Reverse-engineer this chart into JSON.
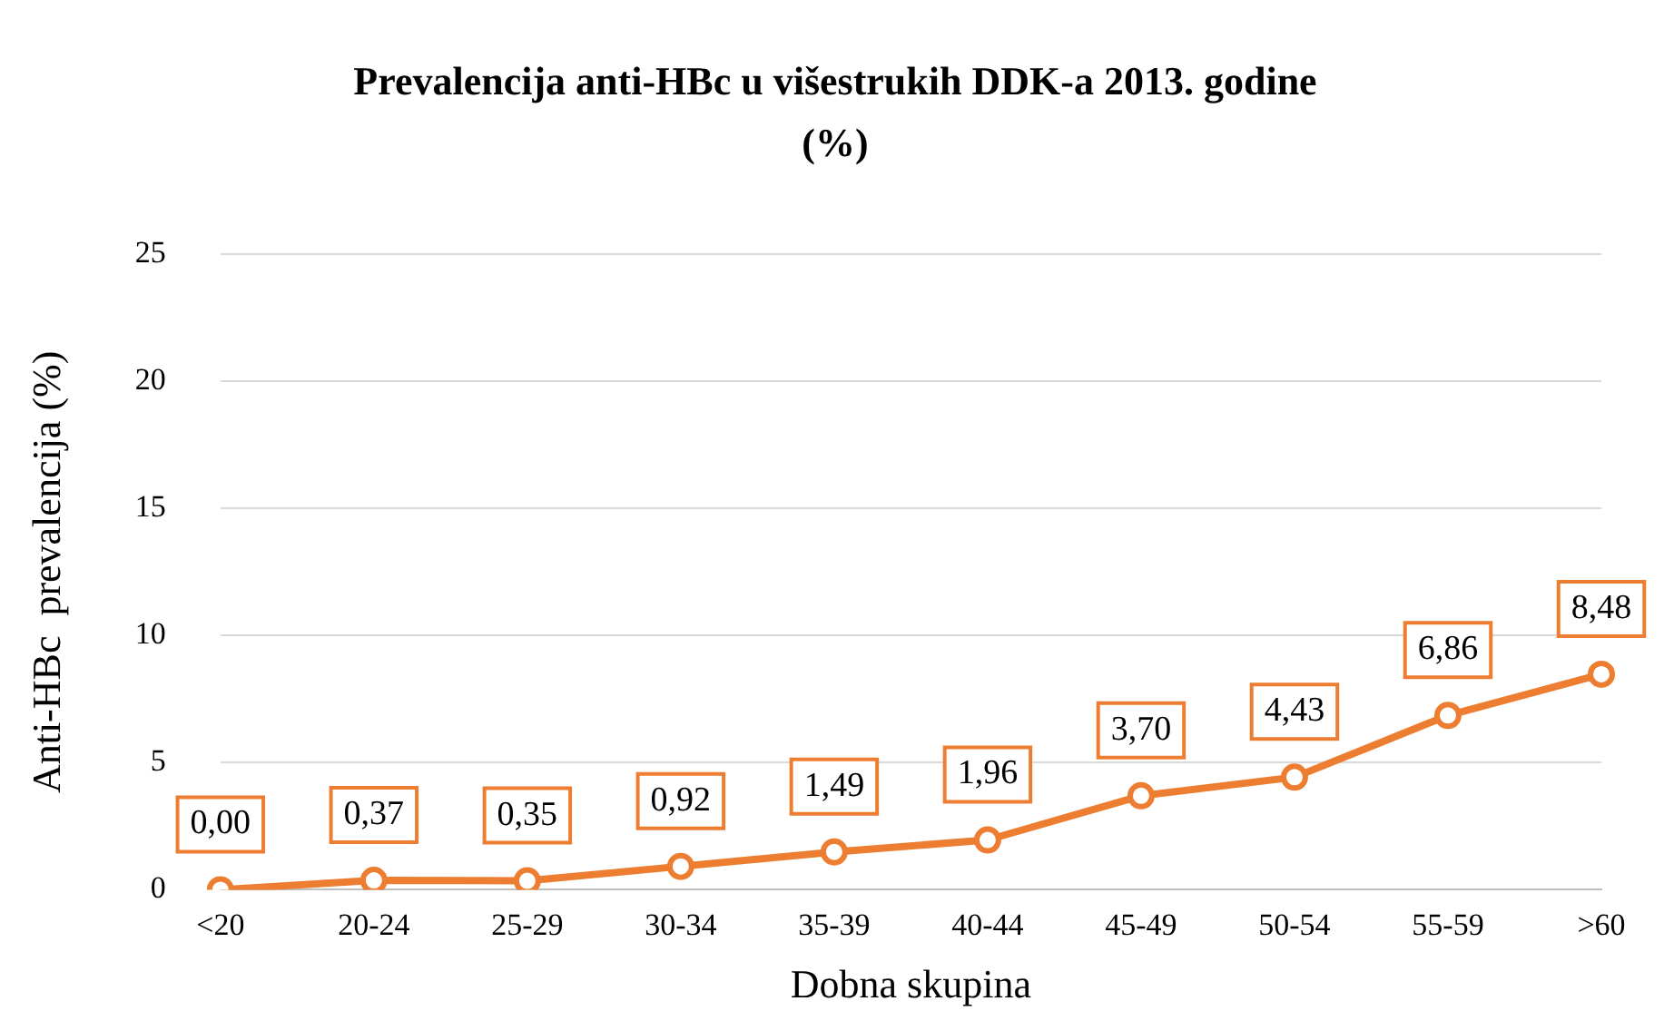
{
  "chart_data": {
    "type": "line",
    "title": "Prevalencija anti-HBc u višestrukih  DDK-a 2013. godine (%)",
    "xlabel": "Dobna skupina",
    "ylabel": "Anti-HBc  prevalencija (%)",
    "categories": [
      "<20",
      "20-24",
      "25-29",
      "30-34",
      "35-39",
      "40-44",
      "45-49",
      "50-54",
      "55-59",
      ">60"
    ],
    "series": [
      {
        "color": "#ed7d31",
        "values": [
          0.0,
          0.37,
          0.35,
          0.92,
          1.49,
          1.96,
          3.7,
          4.43,
          6.86,
          8.48
        ]
      }
    ],
    "value_labels": [
      "0,00",
      "0,37",
      "0,35",
      "0,92",
      "1,49",
      "1,96",
      "3,70",
      "4,43",
      "6,86",
      "8,48"
    ],
    "ylim": [
      0,
      25
    ],
    "yticks": [
      0,
      5,
      10,
      15,
      20,
      25
    ],
    "grid": "y",
    "legend": false,
    "marker": "circle",
    "line_style": "solid"
  }
}
